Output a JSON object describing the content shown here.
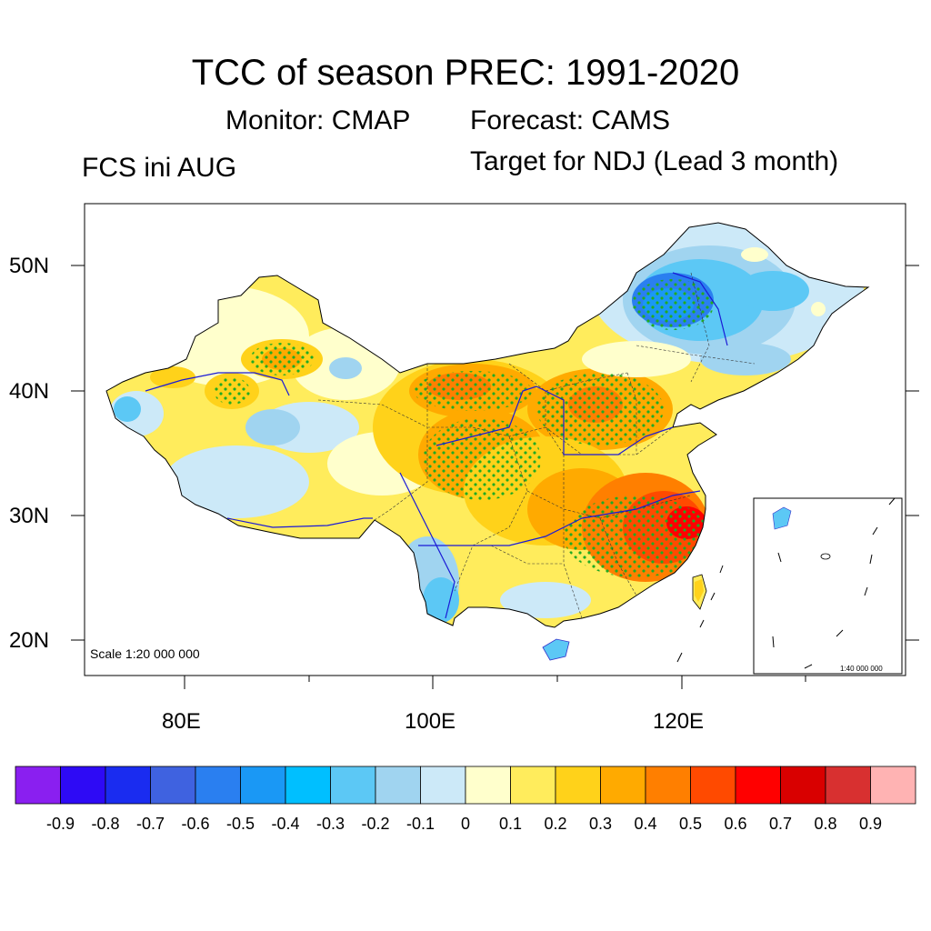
{
  "header": {
    "title": "TCC of season PREC: 1991-2020",
    "monitor": "Monitor: CMAP",
    "forecast": "Forecast: CAMS",
    "init": "FCS ini AUG",
    "target": "Target for NDJ (Lead 3 month)"
  },
  "map": {
    "lat_labels": [
      "50N",
      "40N",
      "30N",
      "20N"
    ],
    "lon_labels": [
      "80E",
      "100E",
      "120E"
    ],
    "scale_main": "Scale 1:20 000 000",
    "scale_inset": "1:40 000 000",
    "stipple_color": "#22aa22",
    "land_border_color": "#000000",
    "river_color": "#1a1ad6"
  },
  "colorbar": {
    "colors": [
      "#8a1ff0",
      "#2e0af5",
      "#1a2cf0",
      "#3f62e0",
      "#2a7ff0",
      "#1a98f5",
      "#00bfff",
      "#5cc8f5",
      "#a0d4f0",
      "#cce9f8",
      "#ffffcc",
      "#ffec5c",
      "#ffd21a",
      "#ffaa00",
      "#ff7f00",
      "#ff4a00",
      "#ff0000",
      "#d90000",
      "#d83030",
      "#ffb3b3"
    ],
    "labels": [
      "-0.9",
      "-0.8",
      "-0.7",
      "-0.6",
      "-0.5",
      "-0.4",
      "-0.3",
      "-0.2",
      "-0.1",
      "0",
      "0.1",
      "0.2",
      "0.3",
      "0.4",
      "0.5",
      "0.6",
      "0.7",
      "0.8",
      "0.9"
    ]
  }
}
